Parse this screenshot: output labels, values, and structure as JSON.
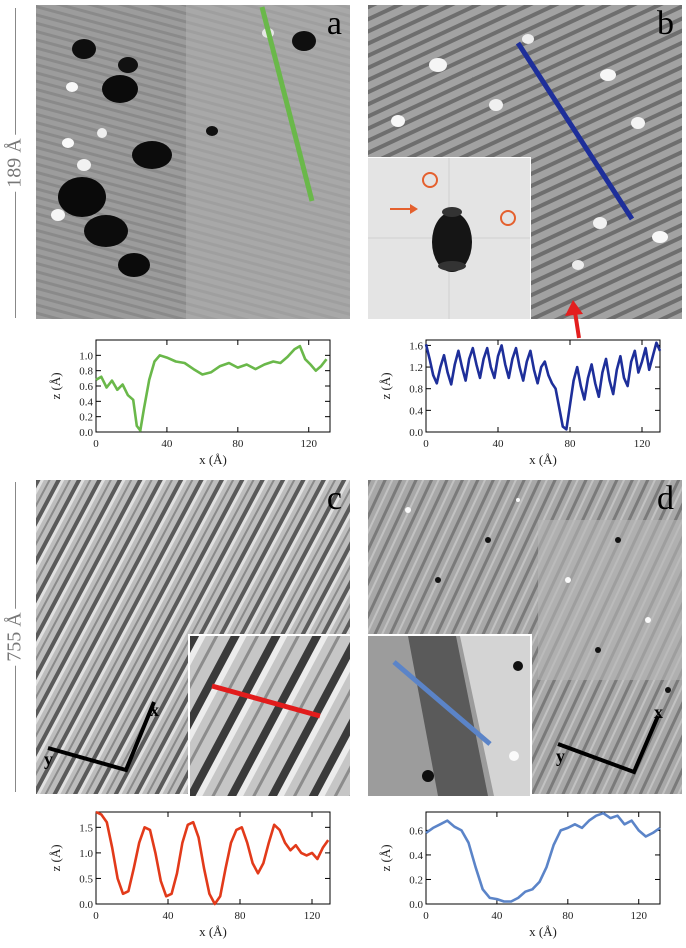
{
  "panels": {
    "a": {
      "letter": "a"
    },
    "b": {
      "letter": "b"
    },
    "c": {
      "letter": "c"
    },
    "d": {
      "letter": "d"
    }
  },
  "scale_bars": {
    "top": "189 Å",
    "bottom": "755 Å"
  },
  "axes_glyphs": {
    "x": "x",
    "y": "y"
  },
  "colors": {
    "a": "#6ab84a",
    "b": "#1e2f9a",
    "c": "#e23a1a",
    "d": "#5b84c8"
  },
  "chart_data": [
    {
      "type": "line",
      "panel": "a",
      "xlabel": "x (Å)",
      "ylabel": "z (Å)",
      "xlim": [
        0,
        132
      ],
      "ylim": [
        0,
        1.2
      ],
      "xticks": [
        0,
        40,
        80,
        120
      ],
      "yticks": [
        0.0,
        0.2,
        0.4,
        0.6,
        0.8,
        1.0
      ],
      "ytick_labels": [
        "0.0",
        "0.2",
        "0.4",
        "0.6",
        "0.8",
        "1.0"
      ],
      "x": [
        0,
        3,
        6,
        9,
        12,
        15,
        18,
        21,
        23,
        25,
        27,
        30,
        33,
        36,
        40,
        45,
        50,
        55,
        60,
        65,
        70,
        75,
        80,
        85,
        90,
        95,
        100,
        104,
        108,
        112,
        115,
        118,
        121,
        124,
        127,
        130
      ],
      "y": [
        0.68,
        0.72,
        0.58,
        0.67,
        0.55,
        0.62,
        0.48,
        0.42,
        0.08,
        0.02,
        0.3,
        0.68,
        0.92,
        1.0,
        0.97,
        0.92,
        0.9,
        0.82,
        0.75,
        0.78,
        0.86,
        0.9,
        0.84,
        0.88,
        0.82,
        0.88,
        0.92,
        0.9,
        0.98,
        1.08,
        1.12,
        0.95,
        0.88,
        0.8,
        0.86,
        0.95
      ]
    },
    {
      "type": "line",
      "panel": "b",
      "xlabel": "x (Å)",
      "ylabel": "z (Å)",
      "xlim": [
        0,
        130
      ],
      "ylim": [
        0,
        1.7
      ],
      "xticks": [
        0,
        40,
        80,
        120
      ],
      "yticks": [
        0.0,
        0.4,
        0.8,
        1.2,
        1.6
      ],
      "ytick_labels": [
        "0.0",
        "0.4",
        "0.8",
        "1.2",
        "1.6"
      ],
      "x": [
        0,
        2,
        4,
        6,
        8,
        10,
        12,
        14,
        16,
        18,
        20,
        22,
        24,
        26,
        28,
        30,
        32,
        34,
        36,
        38,
        40,
        42,
        44,
        46,
        48,
        50,
        52,
        54,
        56,
        58,
        60,
        62,
        64,
        66,
        68,
        70,
        72,
        74,
        76,
        78,
        80,
        82,
        84,
        86,
        88,
        90,
        92,
        94,
        96,
        98,
        100,
        102,
        104,
        106,
        108,
        110,
        112,
        114,
        116,
        118,
        120,
        122,
        124,
        126,
        128,
        130
      ],
      "y": [
        1.62,
        1.35,
        1.05,
        0.9,
        1.2,
        1.42,
        1.1,
        0.88,
        1.25,
        1.5,
        1.2,
        0.95,
        1.35,
        1.55,
        1.25,
        1.0,
        1.35,
        1.55,
        1.2,
        1.0,
        1.4,
        1.6,
        1.25,
        1.0,
        1.35,
        1.55,
        1.2,
        0.95,
        1.3,
        1.5,
        1.15,
        0.9,
        1.2,
        1.3,
        1.05,
        0.9,
        0.8,
        0.45,
        0.1,
        0.05,
        0.5,
        0.95,
        1.2,
        0.85,
        0.6,
        1.0,
        1.25,
        0.9,
        0.65,
        1.1,
        1.35,
        0.95,
        0.7,
        1.15,
        1.4,
        1.0,
        0.85,
        1.3,
        1.5,
        1.1,
        1.3,
        1.55,
        1.15,
        1.4,
        1.65,
        1.5
      ]
    },
    {
      "type": "line",
      "panel": "c",
      "xlabel": "x (Å)",
      "ylabel": "z (Å)",
      "xlim": [
        0,
        130
      ],
      "ylim": [
        0,
        1.8
      ],
      "xticks": [
        0,
        40,
        80,
        120
      ],
      "yticks": [
        0.0,
        0.5,
        1.0,
        1.5
      ],
      "ytick_labels": [
        "0.0",
        "0.5",
        "1.0",
        "1.5"
      ],
      "x": [
        0,
        3,
        6,
        9,
        12,
        15,
        18,
        21,
        24,
        27,
        30,
        33,
        36,
        39,
        42,
        45,
        48,
        51,
        54,
        57,
        60,
        63,
        66,
        69,
        72,
        75,
        78,
        81,
        84,
        87,
        90,
        93,
        96,
        99,
        102,
        105,
        108,
        111,
        114,
        117,
        120,
        123,
        126,
        129
      ],
      "y": [
        1.8,
        1.75,
        1.6,
        1.1,
        0.5,
        0.2,
        0.25,
        0.7,
        1.2,
        1.5,
        1.45,
        1.0,
        0.45,
        0.15,
        0.2,
        0.6,
        1.2,
        1.55,
        1.6,
        1.3,
        0.7,
        0.2,
        0.0,
        0.15,
        0.7,
        1.2,
        1.45,
        1.5,
        1.2,
        0.8,
        0.6,
        0.8,
        1.2,
        1.55,
        1.45,
        1.2,
        1.05,
        1.15,
        1.0,
        0.95,
        1.0,
        0.88,
        1.1,
        1.25
      ]
    },
    {
      "type": "line",
      "panel": "d",
      "xlabel": "x (Å)",
      "ylabel": "z (Å)",
      "xlim": [
        0,
        132
      ],
      "ylim": [
        0,
        0.75
      ],
      "xticks": [
        0,
        40,
        80,
        120
      ],
      "yticks": [
        0.0,
        0.2,
        0.4,
        0.6
      ],
      "ytick_labels": [
        "0.0",
        "0.2",
        "0.4",
        "0.6"
      ],
      "x": [
        0,
        4,
        8,
        12,
        16,
        20,
        24,
        28,
        32,
        36,
        40,
        44,
        48,
        52,
        56,
        60,
        64,
        68,
        72,
        76,
        80,
        84,
        88,
        92,
        96,
        100,
        104,
        108,
        112,
        116,
        120,
        124,
        128,
        132
      ],
      "y": [
        0.58,
        0.62,
        0.65,
        0.68,
        0.63,
        0.6,
        0.5,
        0.3,
        0.12,
        0.05,
        0.04,
        0.02,
        0.02,
        0.05,
        0.1,
        0.12,
        0.18,
        0.3,
        0.48,
        0.6,
        0.62,
        0.65,
        0.62,
        0.68,
        0.72,
        0.74,
        0.7,
        0.72,
        0.65,
        0.68,
        0.6,
        0.55,
        0.58,
        0.62
      ]
    }
  ]
}
